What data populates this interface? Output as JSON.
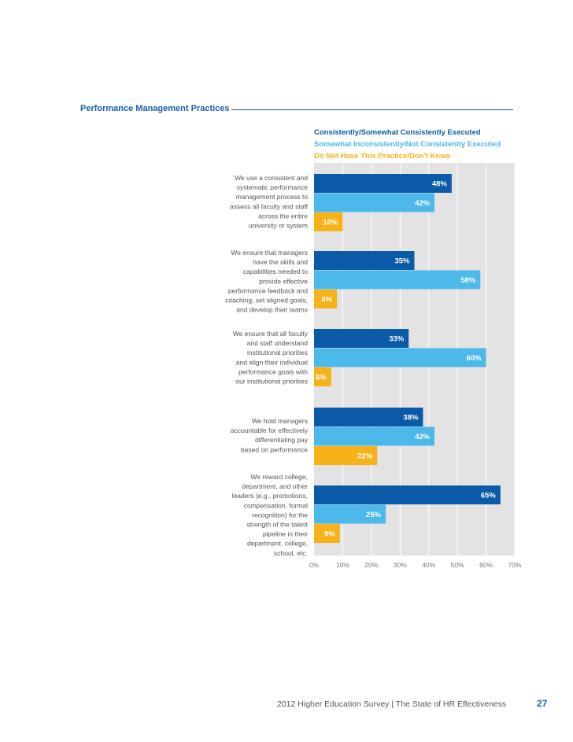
{
  "chart_data": {
    "type": "bar",
    "orientation": "horizontal",
    "title": "Performance Management Practices",
    "categories": [
      [
        "We use a consistent and",
        "systematic performance",
        "management process to",
        "assess all faculty and staff",
        "across the entire",
        "university or system"
      ],
      [
        "We ensure that managers",
        "have the skills and",
        "capabilities needed to",
        "provide effective",
        "performance feedback and",
        "coaching, set aligned goals,",
        "and develop their teams"
      ],
      [
        "We ensure that all faculty",
        "and staff understand",
        "institutional priorities",
        "and align their individual",
        "performance goals with",
        "our institutional priorities"
      ],
      [
        "We hold managers",
        "accountable for effectively",
        "differentiating pay",
        "based on performance"
      ],
      [
        "We reward college,",
        "department, and other",
        "leaders (e.g., promotions,",
        "compensation, formal",
        "recognition) for the",
        "strength of the talent",
        "pipeline in their",
        "department, college,",
        "school, etc."
      ]
    ],
    "series": [
      {
        "name": "Consistently/Somewhat Consistently Executed",
        "values": [
          48,
          35,
          33,
          38,
          65
        ],
        "labels": [
          "48%",
          "35%",
          "33%",
          "38%",
          "65%"
        ]
      },
      {
        "name": "Somewhat Inconsistently/Not Consistently Executed",
        "values": [
          42,
          58,
          60,
          42,
          25
        ],
        "labels": [
          "42%",
          "58%",
          "60%",
          "42%",
          "25%"
        ]
      },
      {
        "name": "Do Not Have This Practice/Don't Know",
        "values": [
          10,
          8,
          6,
          22,
          9
        ],
        "labels": [
          "10%",
          "8%",
          "6%",
          "22%",
          "9%"
        ]
      }
    ],
    "xlim": [
      0,
      70
    ],
    "xticks": [
      "0%",
      "10%",
      "20%",
      "30%",
      "40%",
      "50%",
      "60%",
      "70%"
    ],
    "grid": true,
    "legend_position": "top"
  },
  "colors": {
    "series": [
      "#0a5aa8",
      "#4db8ea",
      "#f7b21a"
    ],
    "title": "#1b5fa8",
    "plot_bg": "#e3e3e4",
    "label_text": "#555555"
  },
  "footer": {
    "text": "2012 Higher Education Survey  |  The State of HR Effectiveness",
    "page_number": "27"
  }
}
